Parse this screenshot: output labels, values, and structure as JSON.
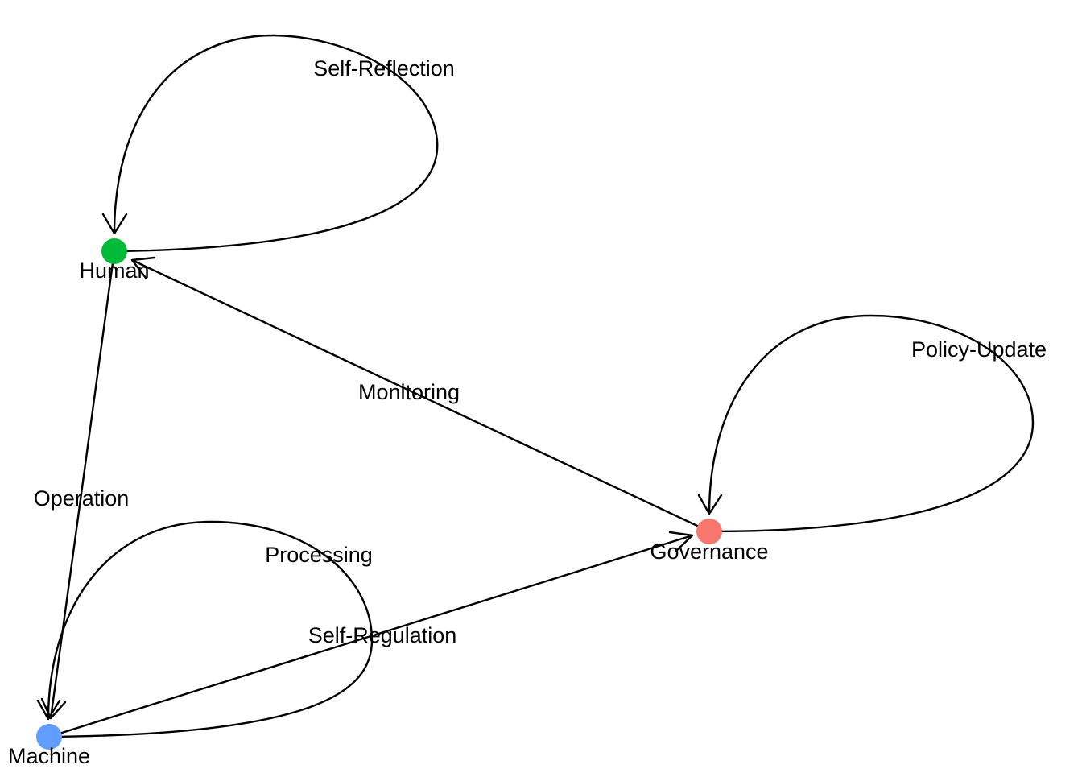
{
  "diagram": {
    "type": "directed-graph",
    "nodes": [
      {
        "id": "human",
        "label": "Human",
        "color": "#00ba38"
      },
      {
        "id": "machine",
        "label": "Machine",
        "color": "#619cff"
      },
      {
        "id": "governance",
        "label": "Governance",
        "color": "#f8766d"
      }
    ],
    "edges": [
      {
        "from": "human",
        "to": "human",
        "label": "Self-Reflection"
      },
      {
        "from": "human",
        "to": "machine",
        "label": "Operation"
      },
      {
        "from": "machine",
        "to": "machine",
        "label": "Processing"
      },
      {
        "from": "machine",
        "to": "governance",
        "label": "Self-Regulation"
      },
      {
        "from": "governance",
        "to": "human",
        "label": "Monitoring"
      },
      {
        "from": "governance",
        "to": "governance",
        "label": "Policy-Update"
      }
    ]
  }
}
